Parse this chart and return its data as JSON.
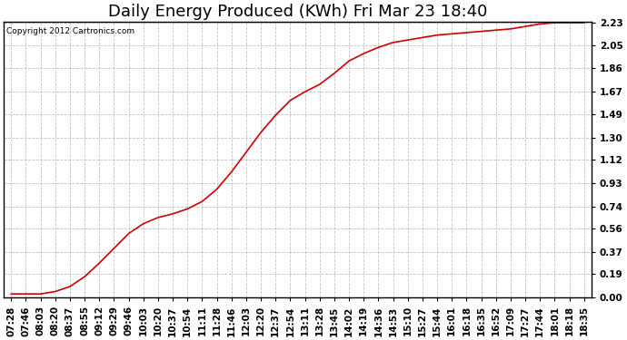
{
  "title": "Daily Energy Produced (KWh) Fri Mar 23 18:40",
  "copyright": "Copyright 2012 Cartronics.com",
  "line_color": "#cc0000",
  "background_color": "#ffffff",
  "grid_color": "#bbbbbb",
  "yticks": [
    0.0,
    0.19,
    0.37,
    0.56,
    0.74,
    0.93,
    1.12,
    1.3,
    1.49,
    1.67,
    1.86,
    2.05,
    2.23
  ],
  "xtick_labels": [
    "07:28",
    "07:46",
    "08:03",
    "08:20",
    "08:37",
    "08:55",
    "09:12",
    "09:29",
    "09:46",
    "10:03",
    "10:20",
    "10:37",
    "10:54",
    "11:11",
    "11:28",
    "11:46",
    "12:03",
    "12:20",
    "12:37",
    "12:54",
    "13:11",
    "13:28",
    "13:45",
    "14:02",
    "14:19",
    "14:36",
    "14:53",
    "15:10",
    "15:27",
    "15:44",
    "16:01",
    "16:18",
    "16:35",
    "16:52",
    "17:09",
    "17:27",
    "17:44",
    "18:01",
    "18:18",
    "18:35"
  ],
  "y_values": [
    0.03,
    0.03,
    0.03,
    0.05,
    0.09,
    0.17,
    0.28,
    0.4,
    0.52,
    0.6,
    0.65,
    0.68,
    0.72,
    0.78,
    0.88,
    1.02,
    1.18,
    1.34,
    1.48,
    1.6,
    1.67,
    1.73,
    1.82,
    1.92,
    1.98,
    2.03,
    2.07,
    2.09,
    2.11,
    2.13,
    2.14,
    2.15,
    2.16,
    2.17,
    2.18,
    2.2,
    2.22,
    2.23,
    2.23,
    2.23
  ],
  "ylim_min": 0.0,
  "ylim_max": 2.23,
  "title_fontsize": 13,
  "tick_fontsize": 7.5,
  "figwidth": 6.9,
  "figheight": 3.75,
  "dpi": 100
}
